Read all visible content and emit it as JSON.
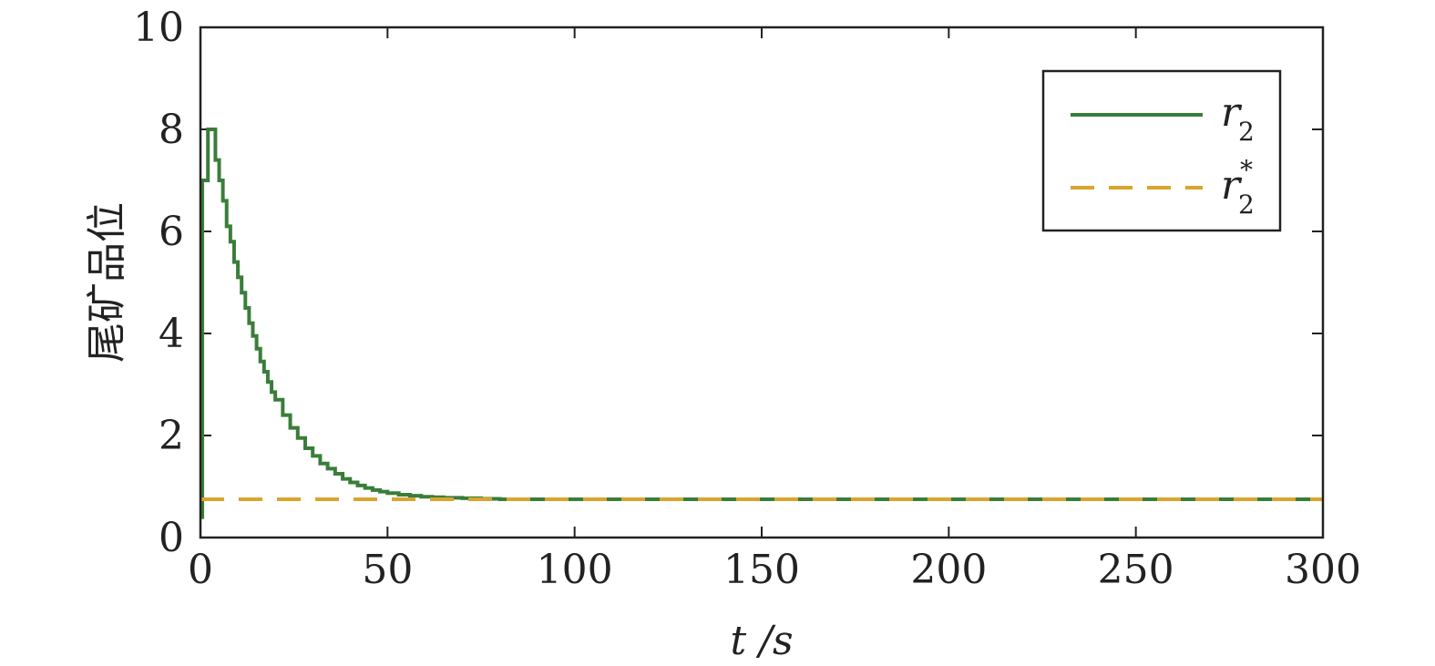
{
  "chart_data": {
    "type": "line",
    "xlabel": "t /s",
    "ylabel": "尾矿品位",
    "xlim": [
      0,
      300
    ],
    "ylim": [
      0,
      10
    ],
    "xticks": [
      0,
      50,
      100,
      150,
      200,
      250,
      300
    ],
    "yticks": [
      0,
      2,
      4,
      6,
      8,
      10
    ],
    "grid": false,
    "legend_position": "top-right",
    "series": [
      {
        "name": "r2",
        "style": "solid-step",
        "color": "#3a7d3a",
        "x": [
          0,
          0.5,
          1,
          2,
          3,
          4,
          5,
          6,
          7,
          8,
          9,
          10,
          11,
          12,
          13,
          14,
          15,
          16,
          17,
          18,
          19,
          20,
          22,
          24,
          26,
          28,
          30,
          32,
          34,
          36,
          38,
          40,
          42,
          44,
          46,
          48,
          50,
          53,
          56,
          59,
          62,
          65,
          70,
          75,
          80,
          90,
          100,
          150,
          200,
          250,
          300
        ],
        "y": [
          0.4,
          7.0,
          7.0,
          8.0,
          8.0,
          7.4,
          7.0,
          6.6,
          6.1,
          5.8,
          5.4,
          5.1,
          4.8,
          4.5,
          4.2,
          3.95,
          3.7,
          3.45,
          3.25,
          3.05,
          2.85,
          2.7,
          2.4,
          2.15,
          1.95,
          1.75,
          1.6,
          1.45,
          1.35,
          1.25,
          1.15,
          1.08,
          1.02,
          0.97,
          0.93,
          0.9,
          0.87,
          0.84,
          0.82,
          0.8,
          0.79,
          0.78,
          0.77,
          0.76,
          0.75,
          0.75,
          0.75,
          0.75,
          0.75,
          0.75,
          0.75
        ]
      },
      {
        "name": "r2*",
        "style": "dashed",
        "color": "#d9a52e",
        "x": [
          0,
          300
        ],
        "y": [
          0.75,
          0.75
        ]
      }
    ],
    "legend": [
      {
        "label": "r",
        "subscript": "2",
        "superscript": ""
      },
      {
        "label": "r",
        "subscript": "2",
        "superscript": "*"
      }
    ]
  }
}
